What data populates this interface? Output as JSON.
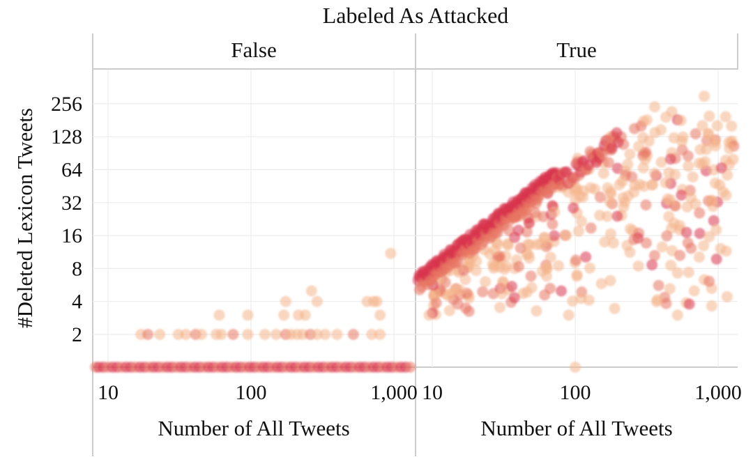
{
  "chart_data": {
    "type": "scatter",
    "title": "Labeled As Attacked",
    "facet_variable": "Labeled As Attacked",
    "xlabel": "Number of All Tweets",
    "ylabel": "#Deleted Lexicon Tweets",
    "x_scale": "log",
    "y_scale": "log2",
    "xlim": [
      7,
      1300
    ],
    "ylim": [
      0.75,
      400
    ],
    "x_ticks": [
      10,
      100,
      1000
    ],
    "x_tick_labels": [
      "10",
      "100",
      "1,000"
    ],
    "y_ticks": [
      2,
      4,
      8,
      16,
      32,
      64,
      128,
      256
    ],
    "y_tick_labels": [
      "2",
      "4",
      "8",
      "16",
      "32",
      "64",
      "128",
      "256"
    ],
    "colors": {
      "light": "#f4b48a",
      "mid": "#e87562",
      "dark": "#d8374f"
    },
    "panels": [
      {
        "label": "False",
        "clusters": [
          {
            "name": "baseline",
            "x_range": [
              8,
              1300
            ],
            "y": 1,
            "count": 70,
            "color": "dark"
          },
          {
            "name": "two",
            "x": [
              17,
              19,
              23,
              31,
              35,
              41,
              45,
              57,
              62,
              75,
              95,
              125,
              150,
              175,
              190,
              210,
              230,
              260,
              290,
              330,
              400,
              520,
              700,
              800
            ],
            "y": 2
          },
          {
            "name": "three",
            "x": [
              60,
              95,
              170,
              215,
              240,
              800
            ],
            "y": 3
          },
          {
            "name": "four",
            "x": [
              175,
              290,
              650,
              720,
              760
            ],
            "y": 4
          },
          {
            "name": "five",
            "x": [
              265
            ],
            "y": 5
          },
          {
            "name": "eleven",
            "x": [
              950
            ],
            "y": 11
          }
        ]
      },
      {
        "label": "True",
        "diagonal": {
          "x_range": [
            8,
            75
          ],
          "ratio": 0.82,
          "count": 140,
          "color": "dark"
        },
        "below_diagonal": {
          "x_range": [
            10,
            1300
          ],
          "count": 360
        },
        "outliers": [
          {
            "x": 9.5,
            "y": 3
          },
          {
            "x": 90,
            "y": 3
          },
          {
            "x": 100,
            "y": 1
          },
          {
            "x": 520,
            "y": 3
          },
          {
            "x": 680,
            "y": 5
          },
          {
            "x": 800,
            "y": 300
          },
          {
            "x": 360,
            "y": 240
          },
          {
            "x": 550,
            "y": 180
          },
          {
            "x": 1200,
            "y": 100
          }
        ]
      }
    ]
  }
}
